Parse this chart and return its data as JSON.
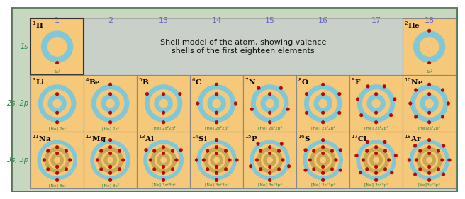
{
  "title": "Shell model of the atom, showing valence\nshells of the first eighteen elements",
  "bg_outer": "#c8d8c0",
  "bg_cell": "#f5c87a",
  "bg_title": "#c8d0c8",
  "border_color": "#557755",
  "group_label_color": "#6666cc",
  "row_label_color": "#228844",
  "element_color": "#000000",
  "config_color": "#228844",
  "electron_color": "#cc0000",
  "shell_blue": "#80c8d8",
  "shell_tan": "#c8a850",
  "elements": [
    {
      "sym": "H",
      "num": 1,
      "row": 0,
      "col": 0,
      "config": "1s¹",
      "shells": [
        1
      ],
      "highlighted": true
    },
    {
      "sym": "He",
      "num": 2,
      "row": 0,
      "col": 7,
      "config": "1s²",
      "shells": [
        2
      ],
      "highlighted": false
    },
    {
      "sym": "Li",
      "num": 3,
      "row": 1,
      "col": 0,
      "config": "[He] 2s¹",
      "shells": [
        2,
        1
      ],
      "highlighted": false
    },
    {
      "sym": "Be",
      "num": 4,
      "row": 1,
      "col": 1,
      "config": "[He] 2s²",
      "shells": [
        2,
        2
      ],
      "highlighted": false
    },
    {
      "sym": "B",
      "num": 5,
      "row": 1,
      "col": 2,
      "config": "[He] 2s²2p¹",
      "shells": [
        2,
        3
      ],
      "highlighted": false
    },
    {
      "sym": "C",
      "num": 6,
      "row": 1,
      "col": 3,
      "config": "[He] 2s²2p²",
      "shells": [
        2,
        4
      ],
      "highlighted": false
    },
    {
      "sym": "N",
      "num": 7,
      "row": 1,
      "col": 4,
      "config": "[He] 2s²2p³",
      "shells": [
        2,
        5
      ],
      "highlighted": false
    },
    {
      "sym": "O",
      "num": 8,
      "row": 1,
      "col": 5,
      "config": "[He] 2s²2p⁴",
      "shells": [
        2,
        6
      ],
      "highlighted": false
    },
    {
      "sym": "F",
      "num": 9,
      "row": 1,
      "col": 6,
      "config": "[He] 2s²2p⁵",
      "shells": [
        2,
        7
      ],
      "highlighted": false
    },
    {
      "sym": "Ne",
      "num": 10,
      "row": 1,
      "col": 7,
      "config": "[He]2s²2p⁶",
      "shells": [
        2,
        8
      ],
      "highlighted": false
    },
    {
      "sym": "Na",
      "num": 11,
      "row": 2,
      "col": 0,
      "config": "[Ne] 3s¹",
      "shells": [
        2,
        8,
        1
      ],
      "highlighted": false
    },
    {
      "sym": "Mg",
      "num": 12,
      "row": 2,
      "col": 1,
      "config": "[Ne] 3s²",
      "shells": [
        2,
        8,
        2
      ],
      "highlighted": false
    },
    {
      "sym": "Al",
      "num": 13,
      "row": 2,
      "col": 2,
      "config": "[Ne] 3s²3p¹",
      "shells": [
        2,
        8,
        3
      ],
      "highlighted": false
    },
    {
      "sym": "Si",
      "num": 14,
      "row": 2,
      "col": 3,
      "config": "[Ne] 3s²3p²",
      "shells": [
        2,
        8,
        4
      ],
      "highlighted": false
    },
    {
      "sym": "P",
      "num": 15,
      "row": 2,
      "col": 4,
      "config": "[Ne] 3s²3p³",
      "shells": [
        2,
        8,
        5
      ],
      "highlighted": false
    },
    {
      "sym": "S",
      "num": 16,
      "row": 2,
      "col": 5,
      "config": "[Ne] 3s²3p⁴",
      "shells": [
        2,
        8,
        6
      ],
      "highlighted": false
    },
    {
      "sym": "Cl",
      "num": 17,
      "row": 2,
      "col": 6,
      "config": "[Ne] 3s²3p⁵",
      "shells": [
        2,
        8,
        7
      ],
      "highlighted": false
    },
    {
      "sym": "Ar",
      "num": 18,
      "row": 2,
      "col": 7,
      "config": "[Ne]3s²3p⁶",
      "shells": [
        2,
        8,
        8
      ],
      "highlighted": false
    }
  ],
  "col_groups": [
    "1",
    "2",
    "13",
    "14",
    "15",
    "16",
    "17",
    "18"
  ],
  "row_labels": [
    "1s",
    "2s, 2p",
    "3s, 3p"
  ]
}
